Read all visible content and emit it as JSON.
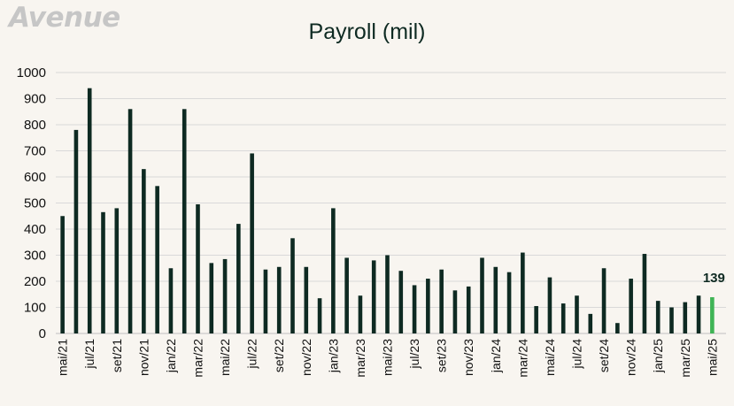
{
  "logo": "Avenue",
  "chart_data": {
    "type": "bar",
    "title": "Payroll  (mil)",
    "xlabel": "",
    "ylabel": "",
    "ylim": [
      0,
      1000
    ],
    "yticks": [
      0,
      100,
      200,
      300,
      400,
      500,
      600,
      700,
      800,
      900,
      1000
    ],
    "grid": true,
    "legend": "none",
    "colors": {
      "bar": "#0e2a22",
      "highlight": "#3fb455"
    },
    "categories": [
      "mai/21",
      "jun/21",
      "jul/21",
      "ago/21",
      "set/21",
      "out/21",
      "nov/21",
      "dez/21",
      "jan/22",
      "fev/22",
      "mar/22",
      "abr/22",
      "mai/22",
      "jun/22",
      "jul/22",
      "ago/22",
      "set/22",
      "out/22",
      "nov/22",
      "dez/22",
      "jan/23",
      "fev/23",
      "mar/23",
      "abr/23",
      "mai/23",
      "jun/23",
      "jul/23",
      "ago/23",
      "set/23",
      "out/23",
      "nov/23",
      "dez/23",
      "jan/24",
      "fev/24",
      "mar/24",
      "abr/24",
      "mai/24",
      "jun/24",
      "jul/24",
      "ago/24",
      "set/24",
      "out/24",
      "nov/24",
      "dez/24",
      "jan/25",
      "fev/25",
      "mar/25",
      "abr/25",
      "mai/25"
    ],
    "visible_tick_labels": [
      "mai/21",
      "jul/21",
      "set/21",
      "nov/21",
      "jan/22",
      "mar/22",
      "mai/22",
      "jul/22",
      "set/22",
      "nov/22",
      "jan/23",
      "mar/23",
      "mai/23",
      "jul/23",
      "set/23",
      "nov/23",
      "jan/24",
      "mar/24",
      "mai/24",
      "jul/24",
      "set/24",
      "nov/24",
      "jan/25",
      "mar/25",
      "mai/25"
    ],
    "values": [
      450,
      780,
      940,
      465,
      480,
      860,
      630,
      565,
      250,
      860,
      495,
      270,
      285,
      420,
      690,
      245,
      255,
      365,
      255,
      135,
      480,
      290,
      145,
      280,
      300,
      240,
      185,
      210,
      245,
      165,
      180,
      290,
      255,
      235,
      310,
      105,
      215,
      115,
      145,
      75,
      250,
      40,
      210,
      305,
      125,
      100,
      120,
      145,
      139
    ],
    "data_labels": [
      {
        "index": 48,
        "text": "139"
      }
    ]
  }
}
